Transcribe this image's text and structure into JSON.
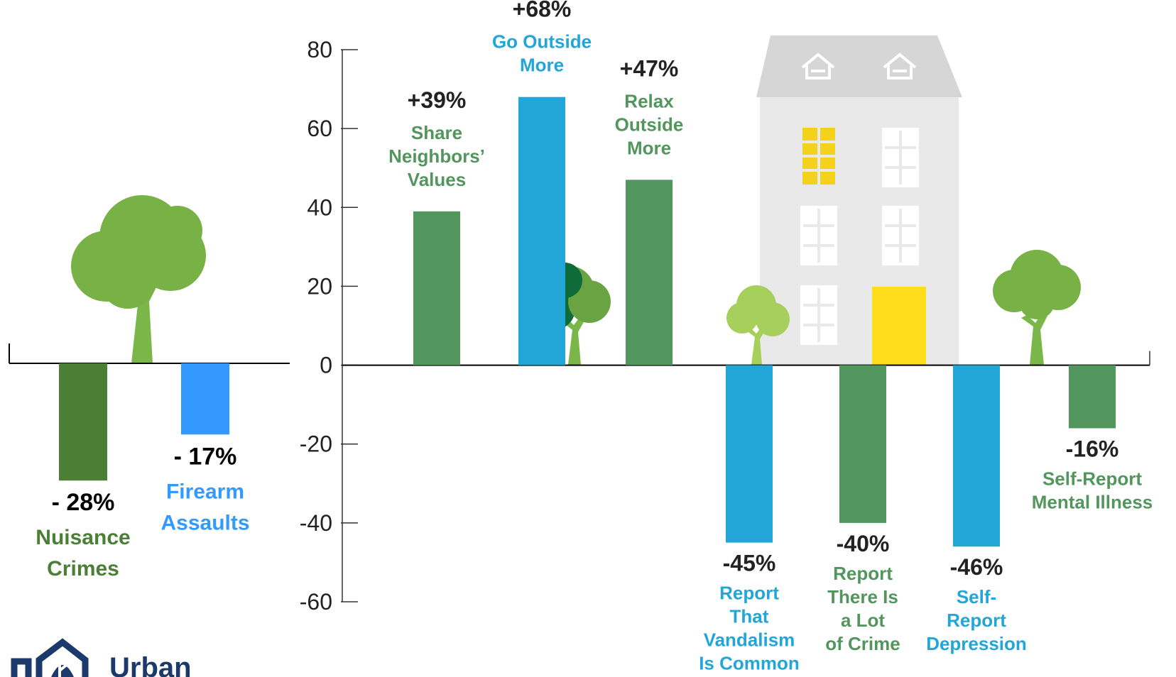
{
  "chart_data": [
    {
      "type": "bar",
      "categories": [
        "Nuisance\nCrimes",
        "Firearm\nAssaults"
      ],
      "values": [
        -28,
        -17
      ],
      "value_labels": [
        "- 28%",
        "- 17%"
      ],
      "colors": [
        "#4a7f35",
        "#3399ff"
      ]
    },
    {
      "type": "bar",
      "categories": [
        "Share\nNeighbors’\nValues",
        "Go Outside\nMore",
        "Relax\nOutside\nMore",
        "Report\nThat\nVandalism\nIs Common",
        "Report\nThere Is\na Lot\nof Crime",
        "Self-\nReport\nDepression",
        "Self-Report\nMental Illness"
      ],
      "values": [
        39,
        68,
        47,
        -45,
        -40,
        -46,
        -16
      ],
      "value_labels": [
        "+39%",
        "+68%",
        "+47%",
        "-45%",
        "-40%",
        "-46%",
        "-16%"
      ],
      "colors": [
        "#52965e",
        "#22a6d8",
        "#52965e",
        "#22a6d8",
        "#52965e",
        "#22a6d8",
        "#52965e"
      ],
      "ylim": [
        -60,
        80
      ],
      "yticks": [
        -60,
        -40,
        -20,
        0,
        20,
        40,
        60,
        80
      ]
    }
  ],
  "logo_text": "Urban"
}
